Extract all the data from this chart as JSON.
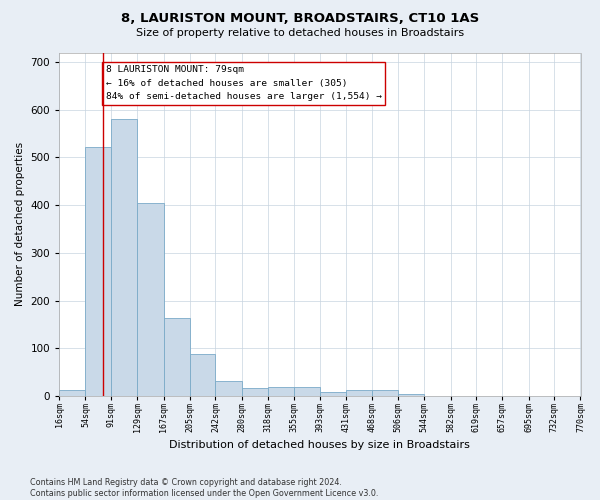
{
  "title1": "8, LAURISTON MOUNT, BROADSTAIRS, CT10 1AS",
  "title2": "Size of property relative to detached houses in Broadstairs",
  "xlabel": "Distribution of detached houses by size in Broadstairs",
  "ylabel": "Number of detached properties",
  "bar_edges": [
    16,
    54,
    91,
    129,
    167,
    205,
    242,
    280,
    318,
    355,
    393,
    431,
    468,
    506,
    544,
    582,
    619,
    657,
    695,
    732,
    770
  ],
  "bar_heights": [
    13,
    523,
    581,
    405,
    163,
    88,
    32,
    18,
    20,
    20,
    8,
    12,
    12,
    5,
    0,
    0,
    0,
    0,
    0,
    0
  ],
  "bar_color": "#c9d9e8",
  "bar_edgecolor": "#7aaac8",
  "property_size": 79,
  "property_label": "8 LAURISTON MOUNT: 79sqm",
  "annotation_line1": "← 16% of detached houses are smaller (305)",
  "annotation_line2": "84% of semi-detached houses are larger (1,554) →",
  "vline_color": "#cc0000",
  "annotation_box_edgecolor": "#cc0000",
  "ylim": [
    0,
    720
  ],
  "yticks": [
    0,
    100,
    200,
    300,
    400,
    500,
    600,
    700
  ],
  "tick_labels": [
    "16sqm",
    "54sqm",
    "91sqm",
    "129sqm",
    "167sqm",
    "205sqm",
    "242sqm",
    "280sqm",
    "318sqm",
    "355sqm",
    "393sqm",
    "431sqm",
    "468sqm",
    "506sqm",
    "544sqm",
    "582sqm",
    "619sqm",
    "657sqm",
    "695sqm",
    "732sqm",
    "770sqm"
  ],
  "footer_line1": "Contains HM Land Registry data © Crown copyright and database right 2024.",
  "footer_line2": "Contains public sector information licensed under the Open Government Licence v3.0.",
  "background_color": "#e8eef5",
  "plot_background": "#ffffff",
  "grid_color": "#c8d4e0"
}
